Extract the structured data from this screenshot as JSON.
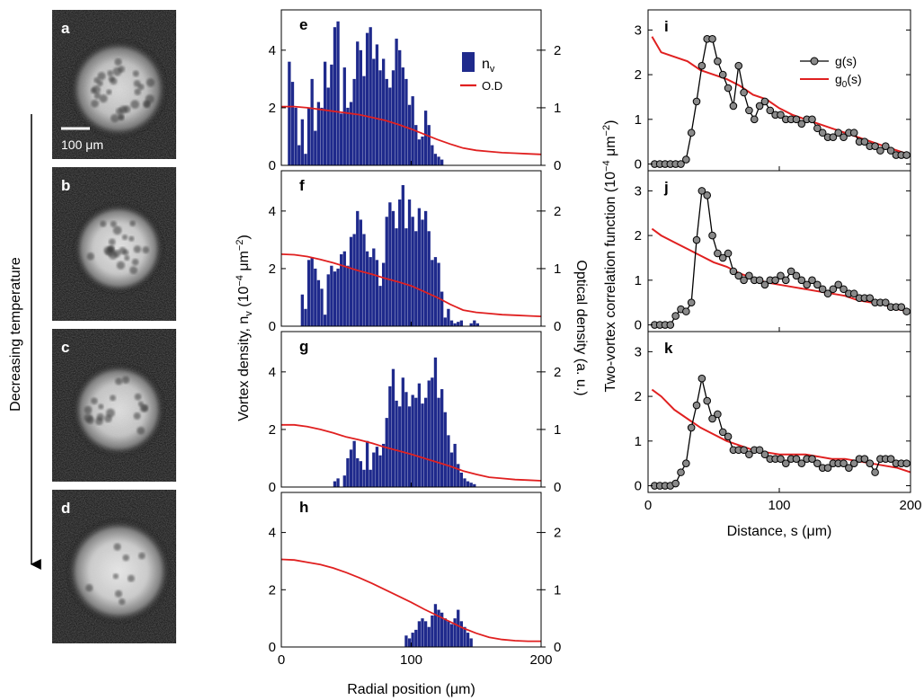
{
  "colors": {
    "bar": "#1f2a8c",
    "od_line": "#e02020",
    "g_line": "#000000",
    "g_marker": "#8a8a8a",
    "g0_line": "#e02020",
    "image_bg": "#0a0a0a"
  },
  "images": {
    "panels": [
      {
        "label": "a",
        "spot_count": 30,
        "brightness": 0.85,
        "size": 0.8
      },
      {
        "label": "b",
        "spot_count": 22,
        "brightness": 0.9,
        "size": 0.74
      },
      {
        "label": "c",
        "spot_count": 18,
        "brightness": 0.88,
        "size": 0.76
      },
      {
        "label": "d",
        "spot_count": 8,
        "brightness": 0.92,
        "size": 0.85
      }
    ],
    "scale_bar_label": "100 μm",
    "arrow_label": "Decreasing temperature"
  },
  "chart_data": [
    {
      "type": "bar",
      "group": "radial-profiles",
      "panels": [
        {
          "label": "e",
          "legend": {
            "bar": "n",
            "bar_subscript": "v",
            "line": "O.D"
          },
          "bin_width": 2.5,
          "bins_start": 5,
          "nv": [
            3.6,
            2.9,
            2.0,
            0.7,
            1.6,
            0.4,
            2.0,
            3.0,
            1.2,
            2.2,
            2.0,
            3.6,
            2.7,
            3.5,
            4.8,
            5.0,
            1.8,
            3.4,
            2.0,
            2.2,
            3.0,
            4.3,
            4.0,
            3.1,
            4.6,
            4.8,
            3.7,
            4.2,
            3.3,
            3.7,
            3.0,
            2.7,
            3.3,
            4.4,
            4.0,
            3.4,
            3.0,
            2.1,
            2.4,
            1.4,
            0.9,
            1.0,
            1.9,
            1.4,
            0.7,
            0.4,
            0.3,
            0.2
          ],
          "od_x": [
            0,
            10,
            20,
            30,
            40,
            50,
            60,
            70,
            80,
            90,
            100,
            110,
            120,
            130,
            140,
            150,
            160,
            170,
            180,
            190,
            200
          ],
          "od_y": [
            1.02,
            1.02,
            1.0,
            0.97,
            0.94,
            0.91,
            0.88,
            0.83,
            0.78,
            0.71,
            0.63,
            0.54,
            0.45,
            0.37,
            0.3,
            0.26,
            0.24,
            0.22,
            0.21,
            0.2,
            0.19
          ]
        },
        {
          "label": "f",
          "bin_width": 2.5,
          "bins_start": 15,
          "nv": [
            1.1,
            0.6,
            2.3,
            2.4,
            2.0,
            1.6,
            1.3,
            0.4,
            1.8,
            2.1,
            1.9,
            2.0,
            2.5,
            2.6,
            2.1,
            3.1,
            3.2,
            4.0,
            3.7,
            3.2,
            2.6,
            2.4,
            2.7,
            2.3,
            1.4,
            2.2,
            3.8,
            4.3,
            4.0,
            3.4,
            4.4,
            4.9,
            3.4,
            4.4,
            3.8,
            3.3,
            4.1,
            3.7,
            4.0,
            3.3,
            2.3,
            2.4,
            2.2,
            1.2,
            0.3,
            0.6,
            0.2,
            0.1,
            0.15,
            0.2,
            0.0,
            0.0,
            0.1,
            0.2,
            0.1
          ],
          "od_x": [
            0,
            10,
            20,
            30,
            40,
            50,
            60,
            70,
            80,
            90,
            100,
            110,
            120,
            130,
            140,
            150,
            160,
            170,
            180,
            190,
            200
          ],
          "od_y": [
            1.25,
            1.24,
            1.21,
            1.16,
            1.1,
            1.03,
            0.96,
            0.9,
            0.83,
            0.77,
            0.7,
            0.6,
            0.5,
            0.38,
            0.28,
            0.24,
            0.22,
            0.2,
            0.19,
            0.18,
            0.17
          ]
        },
        {
          "label": "g",
          "bin_width": 2.5,
          "bins_start": 40,
          "nv": [
            0.2,
            0.3,
            0.0,
            0.4,
            1.0,
            1.3,
            1.6,
            1.0,
            0.9,
            0.6,
            1.6,
            0.6,
            1.2,
            1.4,
            1.1,
            1.5,
            2.4,
            3.5,
            4.1,
            3.0,
            2.8,
            3.8,
            3.3,
            2.8,
            3.2,
            3.1,
            3.6,
            2.9,
            3.1,
            3.7,
            3.8,
            4.5,
            3.1,
            3.4,
            2.6,
            1.8,
            1.2,
            1.5,
            0.8,
            0.5,
            0.3,
            0.2,
            0.15,
            0.1
          ],
          "od_x": [
            0,
            10,
            20,
            30,
            40,
            50,
            60,
            70,
            80,
            90,
            100,
            110,
            120,
            130,
            140,
            150,
            160,
            170,
            180,
            190,
            200
          ],
          "od_y": [
            1.08,
            1.08,
            1.05,
            1.0,
            0.94,
            0.87,
            0.82,
            0.76,
            0.69,
            0.63,
            0.57,
            0.5,
            0.43,
            0.36,
            0.28,
            0.22,
            0.17,
            0.15,
            0.13,
            0.12,
            0.11
          ]
        },
        {
          "label": "h",
          "bin_width": 2.5,
          "bins_start": 95,
          "nv": [
            0.4,
            0.3,
            0.5,
            0.6,
            0.9,
            1.0,
            0.9,
            0.7,
            1.1,
            1.5,
            1.3,
            1.2,
            1.0,
            0.9,
            0.8,
            1.0,
            1.3,
            0.9,
            0.7,
            0.5,
            0.3
          ],
          "od_x": [
            0,
            10,
            20,
            30,
            40,
            50,
            60,
            70,
            80,
            90,
            100,
            110,
            120,
            130,
            140,
            150,
            160,
            170,
            180,
            190,
            200
          ],
          "od_y": [
            1.53,
            1.52,
            1.48,
            1.44,
            1.38,
            1.3,
            1.21,
            1.11,
            1.0,
            0.89,
            0.78,
            0.66,
            0.55,
            0.44,
            0.33,
            0.24,
            0.17,
            0.13,
            0.11,
            0.1,
            0.1
          ]
        }
      ],
      "xlim": [
        0,
        200
      ],
      "xticks": [
        0,
        100,
        200
      ],
      "ylim_left": [
        0,
        5.4
      ],
      "yticks_left": [
        0,
        2,
        4
      ],
      "ylim_right": [
        0,
        2.7
      ],
      "yticks_right": [
        0,
        1,
        2
      ],
      "xlabel": "Radial position (μm)",
      "ylabel_left_prefix": "Vortex density, n",
      "ylabel_left_sub": "v",
      "ylabel_left_suffix": " (10",
      "ylabel_left_sup": "−4",
      "ylabel_left_end": " μm",
      "ylabel_left_sup2": "−2",
      "ylabel_left_close": ")",
      "ylabel_right": "Optical density (a. u.)"
    },
    {
      "type": "scatter",
      "group": "correlation",
      "panels": [
        {
          "label": "i",
          "legend": {
            "g": "g(s)",
            "g0_main": "g",
            "g0_sub": "0",
            "g0_tail": "(s)"
          },
          "g_x": [
            5,
            9,
            13,
            17,
            21,
            25,
            29,
            33,
            37,
            41,
            45,
            49,
            53,
            57,
            61,
            65,
            69,
            73,
            77,
            81,
            85,
            89,
            93,
            97,
            101,
            105,
            109,
            113,
            117,
            121,
            125,
            129,
            133,
            137,
            141,
            145,
            149,
            153,
            157,
            161,
            165,
            169,
            173,
            177,
            181,
            185,
            189,
            193,
            197
          ],
          "g_y": [
            0,
            0,
            0,
            0,
            0,
            0,
            0.1,
            0.7,
            1.4,
            2.2,
            2.8,
            2.8,
            2.3,
            2.0,
            1.7,
            1.3,
            2.2,
            1.6,
            1.2,
            1.0,
            1.3,
            1.4,
            1.2,
            1.1,
            1.1,
            1.0,
            1.0,
            1.0,
            0.9,
            1.0,
            1.0,
            0.8,
            0.7,
            0.6,
            0.6,
            0.7,
            0.6,
            0.7,
            0.7,
            0.5,
            0.5,
            0.4,
            0.4,
            0.3,
            0.4,
            0.3,
            0.2,
            0.2,
            0.2
          ],
          "g0_x": [
            3,
            10,
            20,
            30,
            40,
            50,
            60,
            70,
            80,
            90,
            100,
            110,
            120,
            130,
            140,
            150,
            160,
            170,
            180,
            190,
            200
          ],
          "g0_y": [
            2.85,
            2.5,
            2.4,
            2.3,
            2.1,
            2.0,
            1.9,
            1.75,
            1.55,
            1.45,
            1.25,
            1.1,
            1.0,
            0.9,
            0.8,
            0.7,
            0.6,
            0.5,
            0.4,
            0.3,
            0.2
          ]
        },
        {
          "label": "j",
          "g_x": [
            5,
            9,
            13,
            17,
            21,
            25,
            29,
            33,
            37,
            41,
            45,
            49,
            53,
            57,
            61,
            65,
            69,
            73,
            77,
            81,
            85,
            89,
            93,
            97,
            101,
            105,
            109,
            113,
            117,
            121,
            125,
            129,
            133,
            137,
            141,
            145,
            149,
            153,
            157,
            161,
            165,
            169,
            173,
            177,
            181,
            185,
            189,
            193,
            197
          ],
          "g_y": [
            0,
            0,
            0,
            0,
            0.2,
            0.35,
            0.3,
            0.5,
            1.9,
            3.0,
            2.9,
            2.0,
            1.6,
            1.5,
            1.6,
            1.2,
            1.1,
            1.0,
            1.1,
            1.0,
            1.0,
            0.9,
            1.0,
            1.0,
            1.1,
            1.0,
            1.2,
            1.1,
            1.0,
            0.9,
            1.0,
            0.9,
            0.8,
            0.7,
            0.8,
            0.9,
            0.8,
            0.7,
            0.7,
            0.6,
            0.6,
            0.6,
            0.5,
            0.5,
            0.5,
            0.4,
            0.4,
            0.4,
            0.3
          ],
          "g0_x": [
            3,
            10,
            20,
            30,
            40,
            50,
            60,
            70,
            80,
            90,
            100,
            110,
            120,
            130,
            140,
            150,
            160,
            170,
            180,
            190,
            200
          ],
          "g0_y": [
            2.15,
            2.0,
            1.85,
            1.7,
            1.55,
            1.4,
            1.3,
            1.15,
            1.05,
            0.95,
            0.9,
            0.85,
            0.8,
            0.75,
            0.7,
            0.65,
            0.55,
            0.5,
            0.45,
            0.35,
            0.3
          ]
        },
        {
          "label": "k",
          "g_x": [
            5,
            9,
            13,
            17,
            21,
            25,
            29,
            33,
            37,
            41,
            45,
            49,
            53,
            57,
            61,
            65,
            69,
            73,
            77,
            81,
            85,
            89,
            93,
            97,
            101,
            105,
            109,
            113,
            117,
            121,
            125,
            129,
            133,
            137,
            141,
            145,
            149,
            153,
            157,
            161,
            165,
            169,
            173,
            177,
            181,
            185,
            189,
            193,
            197
          ],
          "g_y": [
            0,
            0,
            0,
            0,
            0.05,
            0.3,
            0.5,
            1.3,
            1.8,
            2.4,
            1.9,
            1.5,
            1.6,
            1.2,
            1.1,
            0.8,
            0.8,
            0.8,
            0.7,
            0.8,
            0.8,
            0.7,
            0.6,
            0.6,
            0.6,
            0.5,
            0.6,
            0.6,
            0.5,
            0.6,
            0.6,
            0.5,
            0.4,
            0.4,
            0.5,
            0.5,
            0.5,
            0.4,
            0.5,
            0.6,
            0.6,
            0.5,
            0.3,
            0.6,
            0.6,
            0.6,
            0.5,
            0.5,
            0.5
          ],
          "g0_x": [
            3,
            10,
            20,
            30,
            40,
            50,
            60,
            70,
            80,
            90,
            100,
            110,
            120,
            130,
            140,
            150,
            160,
            170,
            180,
            190,
            200
          ],
          "g0_y": [
            2.15,
            2.0,
            1.7,
            1.5,
            1.3,
            1.15,
            1.0,
            0.9,
            0.8,
            0.75,
            0.7,
            0.7,
            0.7,
            0.65,
            0.6,
            0.6,
            0.55,
            0.5,
            0.45,
            0.4,
            0.3
          ]
        }
      ],
      "xlim": [
        0,
        200
      ],
      "xticks": [
        0,
        100,
        200
      ],
      "ylim": [
        -0.15,
        3.45
      ],
      "yticks": [
        0,
        1,
        2,
        3
      ],
      "xlabel": "Distance, s (μm)",
      "ylabel_prefix": "Two-vortex correlation  function  (10",
      "ylabel_sup": "−4",
      "ylabel_mid": " μm",
      "ylabel_sup2": "−2",
      "ylabel_close": ")"
    }
  ]
}
